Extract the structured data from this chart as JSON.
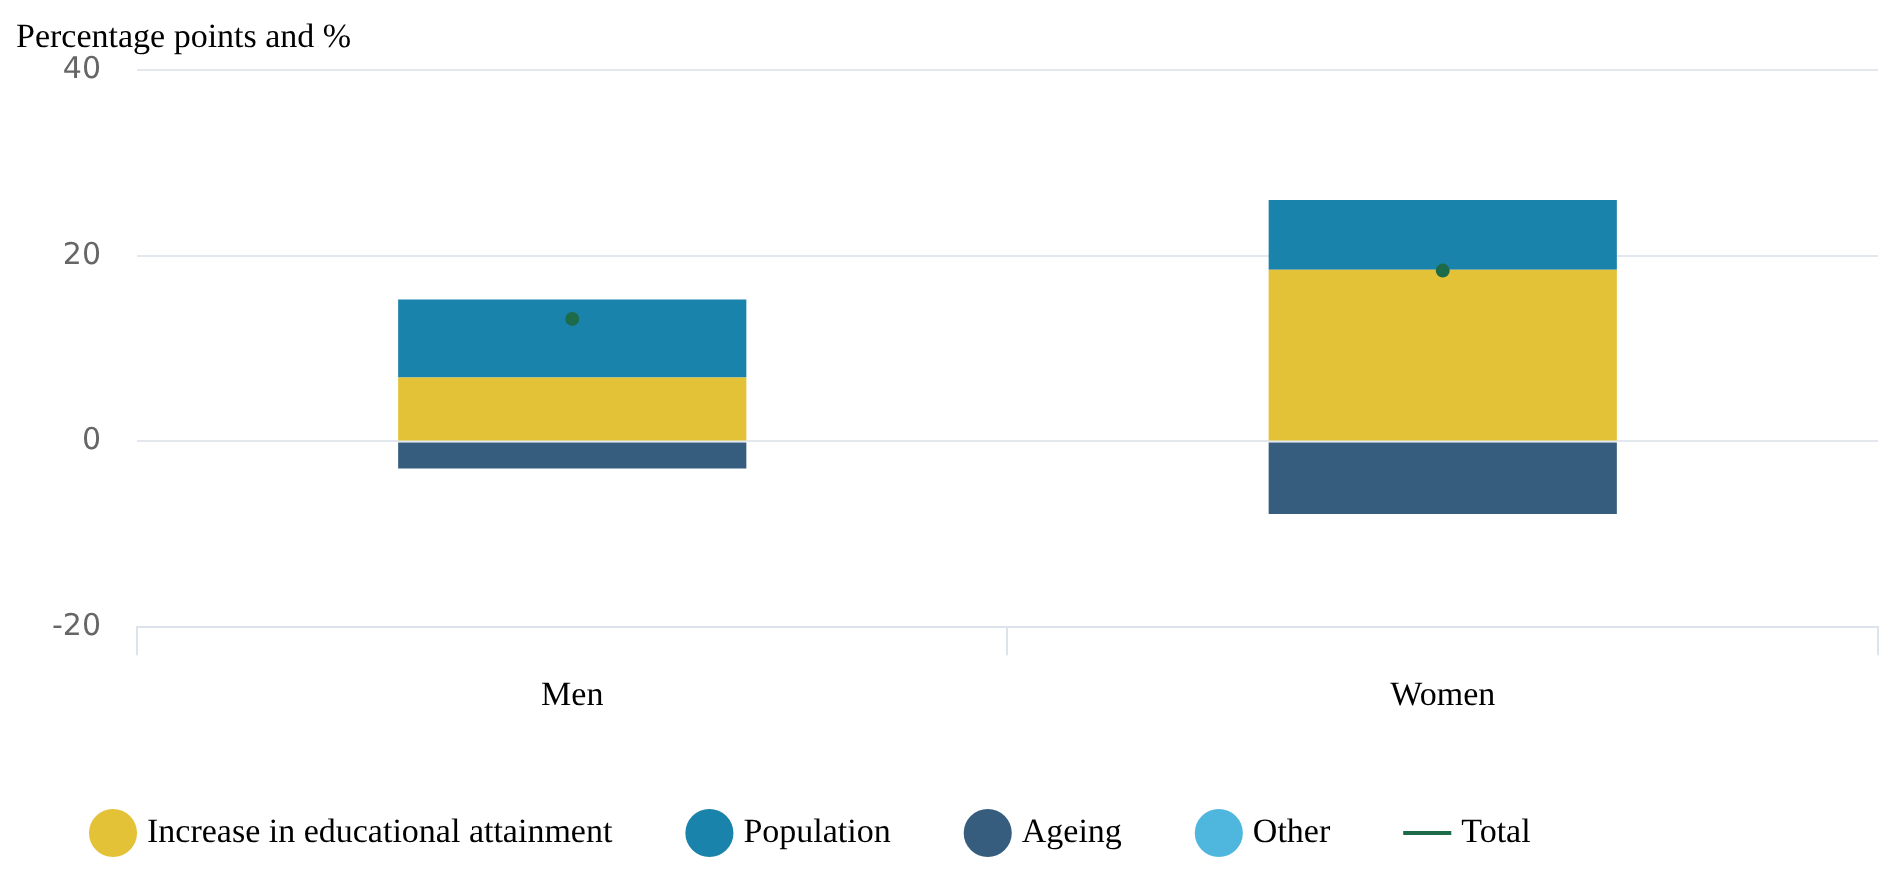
{
  "chart_data": {
    "type": "bar",
    "title": "Percentage points and %",
    "categories": [
      "Men",
      "Women"
    ],
    "stacked": true,
    "series": [
      {
        "name": "Increase in educational attainment",
        "color": "#e3c237",
        "values": [
          6.9,
          18.5
        ]
      },
      {
        "name": "Population",
        "color": "#1a83ab",
        "values": [
          8.4,
          7.5
        ]
      },
      {
        "name": "Ageing",
        "color": "#375d7e",
        "values": [
          -2.9,
          -7.8
        ]
      },
      {
        "name": "Other",
        "color": "#4fb6de",
        "values": [
          null,
          null
        ]
      },
      {
        "name": "Total",
        "type": "scatter",
        "color": "#1e6b4a",
        "x": [
          "Men",
          "Women"
        ],
        "values": [
          13.2,
          18.4
        ],
        "marker": "circle"
      }
    ],
    "ylim": [
      -20,
      40
    ],
    "yticks": [
      -20,
      0,
      20,
      40
    ],
    "grid": "y",
    "legend": "bottom"
  }
}
